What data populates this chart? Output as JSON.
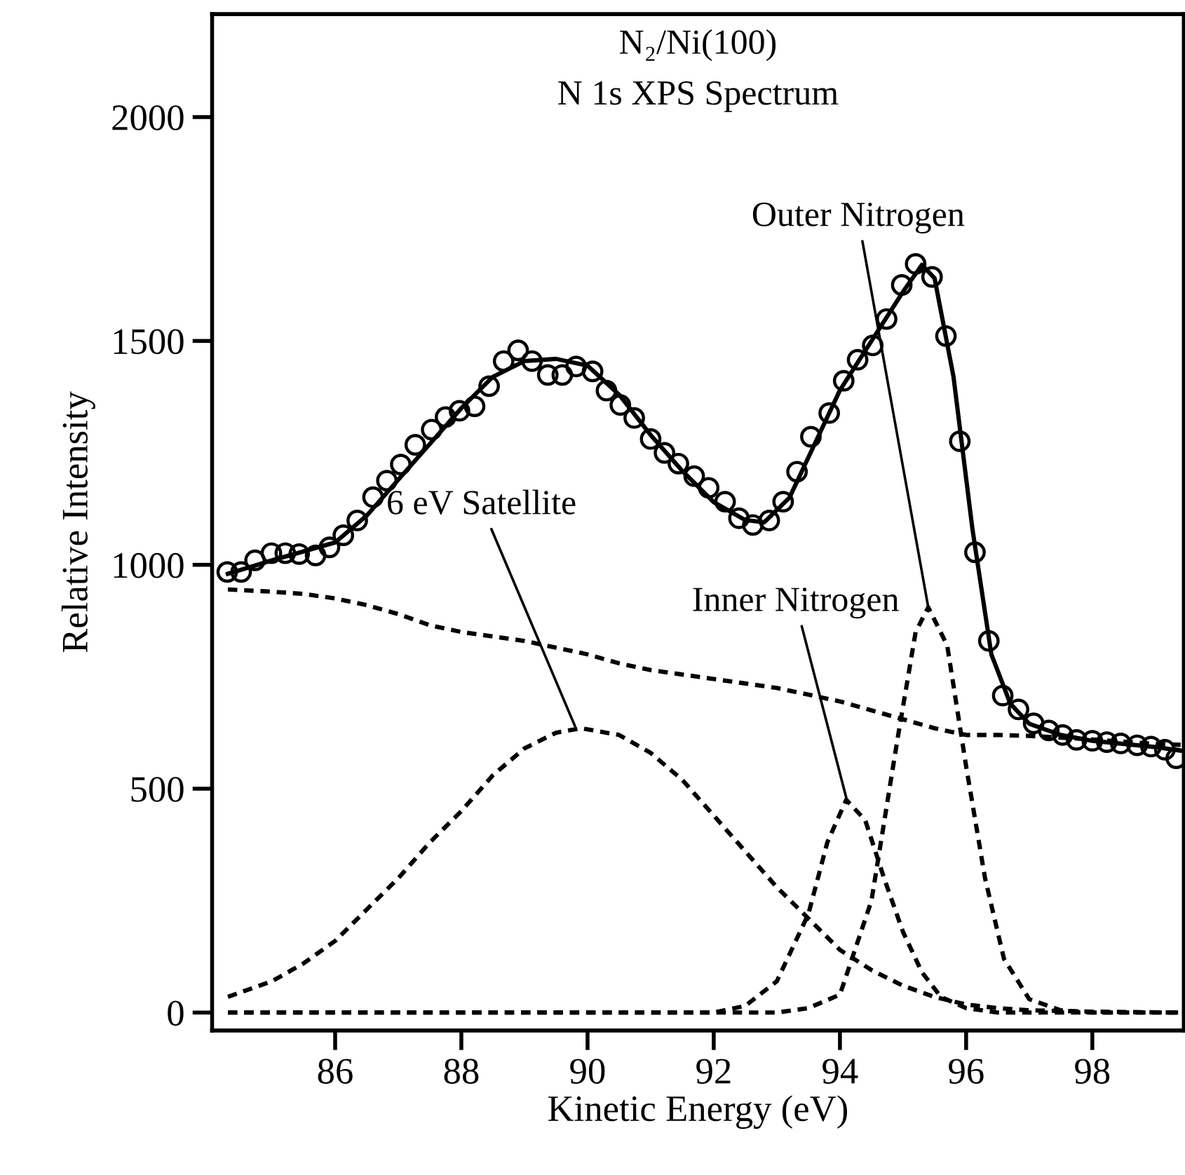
{
  "chart_data": {
    "type": "line",
    "title": "N₂/Ni(100)",
    "subtitle": "N 1s XPS Spectrum",
    "xlabel": "Kinetic Energy (eV)",
    "ylabel": "Relative Intensity",
    "xlim": [
      84.05,
      99.45
    ],
    "ylim": [
      -40,
      2230
    ],
    "xticks": [
      86,
      88,
      90,
      92,
      94,
      96,
      98
    ],
    "yticks": [
      0,
      500,
      1000,
      1500,
      2000
    ],
    "grid": false,
    "legend": false,
    "series": [
      {
        "type": "scatter",
        "marker": "circle",
        "color": "#000000",
        "x": [
          84.29,
          84.51,
          84.73,
          84.99,
          85.21,
          85.43,
          85.69,
          85.91,
          86.13,
          86.35,
          86.6,
          86.82,
          87.04,
          87.27,
          87.53,
          87.75,
          87.97,
          88.21,
          88.44,
          88.67,
          88.9,
          89.12,
          89.37,
          89.6,
          89.82,
          90.08,
          90.3,
          90.52,
          90.74,
          91.0,
          91.22,
          91.44,
          91.69,
          91.92,
          92.18,
          92.4,
          92.62,
          92.88,
          93.1,
          93.32,
          93.54,
          93.83,
          94.06,
          94.28,
          94.52,
          94.74,
          94.98,
          95.2,
          95.46,
          95.68,
          95.9,
          96.14,
          96.36,
          96.58,
          96.83,
          97.07,
          97.31,
          97.53,
          97.75,
          98.0,
          98.23,
          98.45,
          98.71,
          98.93,
          99.15,
          99.33
        ],
        "values": [
          984,
          984,
          1010,
          1026,
          1026,
          1024,
          1021,
          1039,
          1066,
          1099,
          1151,
          1188,
          1224,
          1268,
          1302,
          1330,
          1344,
          1354,
          1399,
          1455,
          1479,
          1455,
          1424,
          1424,
          1443,
          1432,
          1389,
          1357,
          1328,
          1281,
          1250,
          1226,
          1198,
          1172,
          1141,
          1104,
          1089,
          1099,
          1141,
          1208,
          1286,
          1339,
          1411,
          1458,
          1490,
          1549,
          1625,
          1672,
          1643,
          1511,
          1276,
          1028,
          830,
          708,
          677,
          646,
          630,
          620,
          609,
          607,
          604,
          601,
          597,
          594,
          587,
          568
        ]
      },
      {
        "line_style": "solid",
        "color": "#000000",
        "x": [
          84.3,
          85,
          85.5,
          86,
          86.5,
          87,
          87.5,
          88,
          88.5,
          89,
          89.5,
          90,
          90.5,
          91,
          91.5,
          92,
          92.5,
          92.8,
          93.2,
          93.6,
          94,
          94.5,
          95,
          95.3,
          95.5,
          95.8,
          96.1,
          96.4,
          96.7,
          97,
          97.5,
          98,
          98.5,
          99,
          99.4
        ],
        "values": [
          980,
          1010,
          1030,
          1050,
          1110,
          1190,
          1270,
          1350,
          1420,
          1455,
          1460,
          1445,
          1380,
          1290,
          1210,
          1140,
          1100,
          1095,
          1150,
          1270,
          1390,
          1500,
          1610,
          1670,
          1640,
          1420,
          1080,
          800,
          690,
          645,
          620,
          607,
          600,
          593,
          585
        ]
      },
      {
        "line_style": "dashed",
        "color": "#000000",
        "x": [
          84.3,
          85,
          85.5,
          86,
          86.5,
          87,
          87.5,
          88,
          88.5,
          89,
          89.5,
          90,
          90.5,
          91,
          91.5,
          92,
          92.5,
          93,
          93.5,
          94,
          94.5,
          95,
          95.5,
          96,
          96.5,
          97,
          98,
          99,
          99.4
        ],
        "values": [
          945,
          940,
          935,
          925,
          910,
          890,
          865,
          850,
          840,
          830,
          815,
          800,
          780,
          765,
          755,
          745,
          735,
          725,
          710,
          695,
          675,
          655,
          635,
          620,
          620,
          618,
          610,
          600,
          598
        ]
      },
      {
        "line_style": "dashed",
        "color": "#000000",
        "x": [
          84.3,
          85,
          85.5,
          86,
          86.5,
          87,
          87.5,
          88,
          88.5,
          89,
          89.5,
          89.9,
          90.5,
          91,
          91.5,
          92,
          92.5,
          93,
          93.5,
          94,
          94.5,
          95,
          95.5,
          96,
          96.5,
          97,
          98,
          99.4
        ],
        "values": [
          35,
          70,
          110,
          160,
          230,
          300,
          380,
          450,
          530,
          590,
          625,
          635,
          620,
          580,
          520,
          440,
          360,
          280,
          210,
          140,
          95,
          60,
          35,
          18,
          10,
          5,
          2,
          0
        ]
      },
      {
        "line_style": "dashed",
        "color": "#000000",
        "x": [
          84.3,
          92,
          92.5,
          93,
          93.5,
          93.8,
          94.1,
          94.4,
          94.7,
          95,
          95.3,
          95.6,
          96,
          96.5,
          99.4
        ],
        "values": [
          0,
          0,
          15,
          70,
          220,
          380,
          475,
          430,
          300,
          180,
          90,
          35,
          10,
          0,
          0
        ]
      },
      {
        "line_style": "dashed",
        "color": "#000000",
        "x": [
          84.3,
          93,
          93.5,
          94,
          94.5,
          94.9,
          95.2,
          95.4,
          95.7,
          96,
          96.3,
          96.6,
          97,
          97.5,
          98,
          99.4
        ],
        "values": [
          0,
          0,
          10,
          40,
          250,
          600,
          850,
          905,
          820,
          550,
          300,
          120,
          30,
          5,
          0,
          0
        ]
      }
    ],
    "annotations": [
      {
        "text": "6 eV Satellite",
        "x": 89.8,
        "y": 640
      },
      {
        "text": "Inner Nitrogen",
        "x": 94.1,
        "y": 480
      },
      {
        "text": "Outer Nitrogen",
        "x": 95.4,
        "y": 905
      }
    ]
  }
}
